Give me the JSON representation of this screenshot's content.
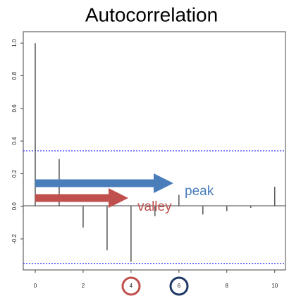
{
  "chart_data": {
    "type": "acf",
    "title": "Autocorrelation",
    "x": [
      0,
      1,
      2,
      3,
      4,
      5,
      6,
      7,
      8,
      9,
      10
    ],
    "values": [
      1.0,
      0.29,
      -0.13,
      -0.27,
      -0.34,
      -0.06,
      0.07,
      -0.05,
      -0.03,
      -0.01,
      0.12
    ],
    "color": "#555555",
    "xlim": [
      -0.5,
      10.45
    ],
    "ylim": [
      -0.39,
      1.07
    ],
    "xticks": [
      0,
      2,
      4,
      6,
      8,
      10
    ],
    "yticks": [
      {
        "value": -0.2,
        "label": "-0.2"
      },
      {
        "value": 0,
        "label": "0.0"
      },
      0.2,
      0.4,
      0.6,
      0.8,
      {
        "value": 1,
        "label": "1.0"
      }
    ],
    "confidence_lines": [
      0.34,
      -0.35
    ],
    "confidence_color": "#3333ff",
    "annotations": [
      {
        "text": "peak",
        "color": "#4a7ebb"
      },
      {
        "text": "valley",
        "color": "#c0504d"
      }
    ]
  }
}
